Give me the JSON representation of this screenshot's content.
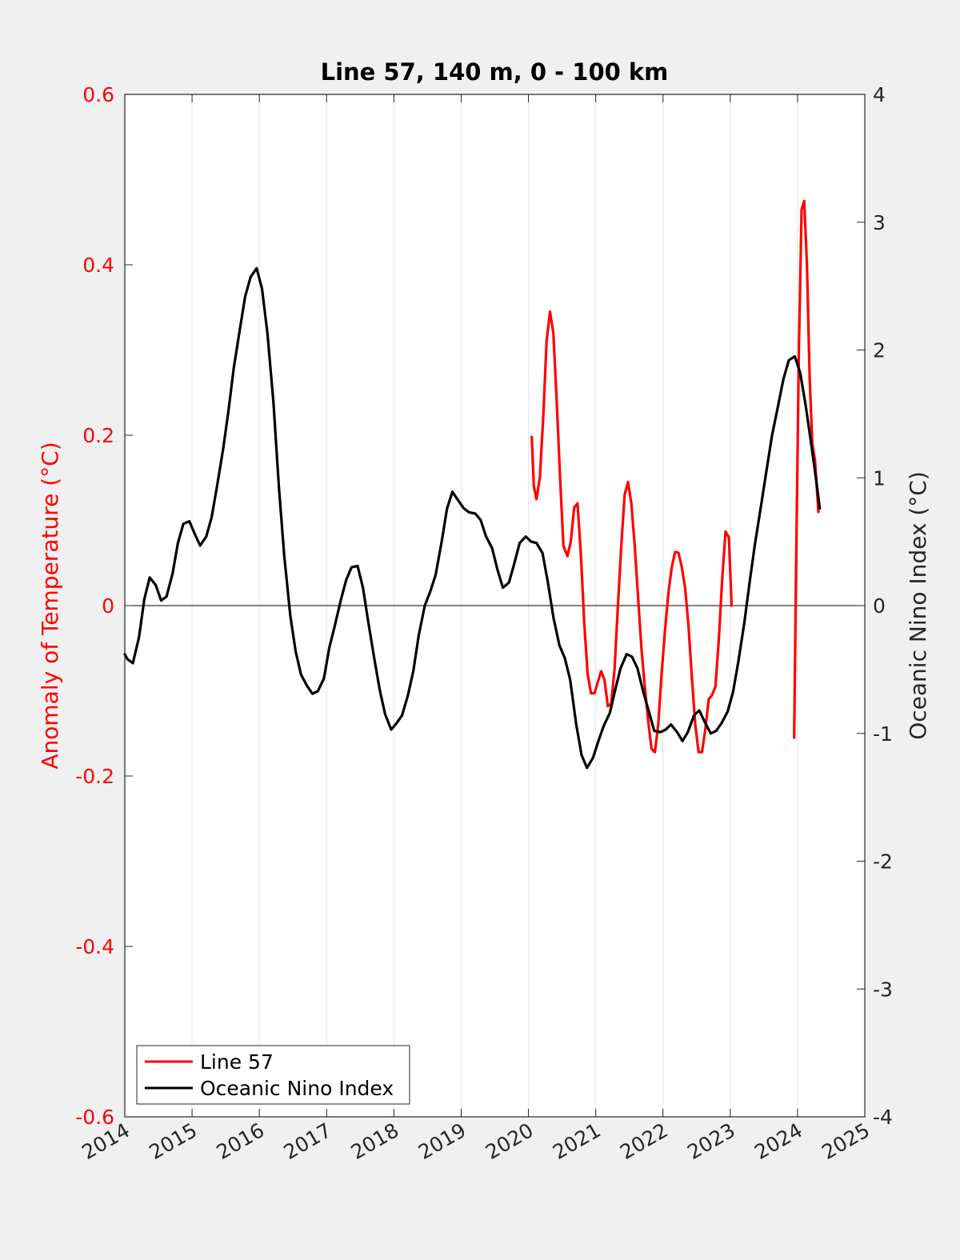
{
  "chart_data": {
    "type": "line",
    "title": "Line 57, 140 m, 0 - 100 km",
    "xlabel": "",
    "ylabel_left": "Anomaly of Temperature (°C)",
    "ylabel_right": "Oceanic Nino Index (°C)",
    "xlim": [
      2014,
      2025
    ],
    "ylim_left": [
      -0.6,
      0.6
    ],
    "ylim_right": [
      -4,
      4
    ],
    "x_ticks": [
      2014,
      2015,
      2016,
      2017,
      2018,
      2019,
      2020,
      2021,
      2022,
      2023,
      2024,
      2025
    ],
    "x_tick_labels": [
      "2014",
      "2015",
      "2016",
      "2017",
      "2018",
      "2019",
      "2020",
      "2021",
      "2022",
      "2023",
      "2024",
      "2025"
    ],
    "y_left_ticks": [
      -0.6,
      -0.4,
      -0.2,
      0,
      0.2,
      0.4,
      0.6
    ],
    "y_left_tick_labels": [
      "-0.6",
      "-0.4",
      "-0.2",
      "0",
      "0.2",
      "0.4",
      "0.6"
    ],
    "y_right_ticks": [
      -4,
      -3,
      -2,
      -1,
      0,
      1,
      2,
      3,
      4
    ],
    "y_right_tick_labels": [
      "-4",
      "-3",
      "-2",
      "-1",
      "0",
      "1",
      "2",
      "3",
      "4"
    ],
    "grid": "vertical",
    "legend_position": "bottom-left",
    "colors": {
      "line57": "#ff0000",
      "oni": "#000000",
      "left_axis": "#ff0000"
    },
    "series": [
      {
        "name": "Line 57",
        "axis": "left",
        "segments": [
          [
            [
              2020.05,
              0.198
            ],
            [
              2020.08,
              0.14
            ],
            [
              2020.12,
              0.125
            ],
            [
              2020.17,
              0.15
            ],
            [
              2020.22,
              0.22
            ],
            [
              2020.27,
              0.31
            ],
            [
              2020.32,
              0.345
            ],
            [
              2020.37,
              0.32
            ],
            [
              2020.42,
              0.24
            ],
            [
              2020.47,
              0.15
            ],
            [
              2020.52,
              0.07
            ],
            [
              2020.58,
              0.058
            ],
            [
              2020.63,
              0.075
            ],
            [
              2020.68,
              0.115
            ],
            [
              2020.73,
              0.12
            ],
            [
              2020.78,
              0.06
            ],
            [
              2020.83,
              -0.02
            ],
            [
              2020.88,
              -0.08
            ],
            [
              2020.93,
              -0.103
            ],
            [
              2020.98,
              -0.103
            ],
            [
              2021.03,
              -0.09
            ],
            [
              2021.08,
              -0.077
            ],
            [
              2021.13,
              -0.087
            ],
            [
              2021.18,
              -0.118
            ],
            [
              2021.23,
              -0.115
            ],
            [
              2021.28,
              -0.075
            ],
            [
              2021.33,
              0.0
            ],
            [
              2021.38,
              0.07
            ],
            [
              2021.43,
              0.13
            ],
            [
              2021.48,
              0.145
            ],
            [
              2021.53,
              0.12
            ],
            [
              2021.58,
              0.07
            ],
            [
              2021.63,
              0.01
            ],
            [
              2021.68,
              -0.05
            ],
            [
              2021.73,
              -0.095
            ],
            [
              2021.78,
              -0.135
            ],
            [
              2021.83,
              -0.168
            ],
            [
              2021.88,
              -0.172
            ],
            [
              2021.93,
              -0.14
            ],
            [
              2021.98,
              -0.08
            ],
            [
              2022.03,
              -0.03
            ],
            [
              2022.08,
              0.015
            ],
            [
              2022.13,
              0.045
            ],
            [
              2022.18,
              0.063
            ],
            [
              2022.23,
              0.062
            ],
            [
              2022.28,
              0.045
            ],
            [
              2022.33,
              0.02
            ],
            [
              2022.38,
              -0.025
            ],
            [
              2022.43,
              -0.085
            ],
            [
              2022.48,
              -0.14
            ],
            [
              2022.53,
              -0.172
            ],
            [
              2022.58,
              -0.172
            ],
            [
              2022.63,
              -0.145
            ],
            [
              2022.68,
              -0.11
            ],
            [
              2022.73,
              -0.105
            ],
            [
              2022.78,
              -0.095
            ],
            [
              2022.83,
              -0.04
            ],
            [
              2022.88,
              0.03
            ],
            [
              2022.93,
              0.087
            ],
            [
              2022.98,
              0.08
            ],
            [
              2023.02,
              0.0
            ]
          ],
          [
            [
              2023.95,
              -0.155
            ],
            [
              2023.98,
              0.05
            ],
            [
              2024.02,
              0.3
            ],
            [
              2024.06,
              0.465
            ],
            [
              2024.1,
              0.475
            ],
            [
              2024.14,
              0.4
            ],
            [
              2024.18,
              0.27
            ],
            [
              2024.22,
              0.19
            ],
            [
              2024.26,
              0.17
            ],
            [
              2024.31,
              0.11
            ]
          ]
        ]
      },
      {
        "name": "Oceanic Nino Index",
        "axis": "right",
        "points": [
          [
            2014.0,
            -0.38
          ],
          [
            2014.04,
            -0.42
          ],
          [
            2014.12,
            -0.45
          ],
          [
            2014.21,
            -0.25
          ],
          [
            2014.29,
            0.05
          ],
          [
            2014.37,
            0.22
          ],
          [
            2014.46,
            0.16
          ],
          [
            2014.54,
            0.04
          ],
          [
            2014.62,
            0.07
          ],
          [
            2014.71,
            0.25
          ],
          [
            2014.79,
            0.49
          ],
          [
            2014.87,
            0.64
          ],
          [
            2014.96,
            0.66
          ],
          [
            2015.04,
            0.56
          ],
          [
            2015.12,
            0.47
          ],
          [
            2015.21,
            0.54
          ],
          [
            2015.29,
            0.69
          ],
          [
            2015.37,
            0.93
          ],
          [
            2015.46,
            1.22
          ],
          [
            2015.54,
            1.52
          ],
          [
            2015.62,
            1.86
          ],
          [
            2015.71,
            2.16
          ],
          [
            2015.79,
            2.42
          ],
          [
            2015.87,
            2.57
          ],
          [
            2015.96,
            2.64
          ],
          [
            2016.04,
            2.48
          ],
          [
            2016.12,
            2.13
          ],
          [
            2016.21,
            1.59
          ],
          [
            2016.29,
            0.93
          ],
          [
            2016.37,
            0.39
          ],
          [
            2016.46,
            -0.08
          ],
          [
            2016.54,
            -0.36
          ],
          [
            2016.62,
            -0.54
          ],
          [
            2016.71,
            -0.63
          ],
          [
            2016.79,
            -0.69
          ],
          [
            2016.87,
            -0.67
          ],
          [
            2016.96,
            -0.57
          ],
          [
            2017.04,
            -0.33
          ],
          [
            2017.12,
            -0.16
          ],
          [
            2017.21,
            0.04
          ],
          [
            2017.29,
            0.2
          ],
          [
            2017.37,
            0.3
          ],
          [
            2017.46,
            0.31
          ],
          [
            2017.54,
            0.14
          ],
          [
            2017.62,
            -0.13
          ],
          [
            2017.71,
            -0.42
          ],
          [
            2017.79,
            -0.66
          ],
          [
            2017.87,
            -0.85
          ],
          [
            2017.96,
            -0.97
          ],
          [
            2018.04,
            -0.92
          ],
          [
            2018.12,
            -0.86
          ],
          [
            2018.21,
            -0.7
          ],
          [
            2018.29,
            -0.51
          ],
          [
            2018.37,
            -0.23
          ],
          [
            2018.46,
            0.0
          ],
          [
            2018.54,
            0.11
          ],
          [
            2018.62,
            0.24
          ],
          [
            2018.71,
            0.5
          ],
          [
            2018.79,
            0.76
          ],
          [
            2018.87,
            0.89
          ],
          [
            2018.96,
            0.82
          ],
          [
            2019.04,
            0.76
          ],
          [
            2019.12,
            0.73
          ],
          [
            2019.21,
            0.72
          ],
          [
            2019.29,
            0.67
          ],
          [
            2019.37,
            0.54
          ],
          [
            2019.46,
            0.45
          ],
          [
            2019.54,
            0.28
          ],
          [
            2019.62,
            0.14
          ],
          [
            2019.71,
            0.18
          ],
          [
            2019.79,
            0.33
          ],
          [
            2019.87,
            0.49
          ],
          [
            2019.96,
            0.54
          ],
          [
            2020.04,
            0.5
          ],
          [
            2020.12,
            0.49
          ],
          [
            2020.21,
            0.41
          ],
          [
            2020.29,
            0.18
          ],
          [
            2020.37,
            -0.09
          ],
          [
            2020.46,
            -0.31
          ],
          [
            2020.54,
            -0.41
          ],
          [
            2020.62,
            -0.58
          ],
          [
            2020.71,
            -0.93
          ],
          [
            2020.79,
            -1.17
          ],
          [
            2020.87,
            -1.27
          ],
          [
            2020.96,
            -1.19
          ],
          [
            2021.04,
            -1.06
          ],
          [
            2021.12,
            -0.94
          ],
          [
            2021.21,
            -0.84
          ],
          [
            2021.29,
            -0.66
          ],
          [
            2021.37,
            -0.49
          ],
          [
            2021.46,
            -0.38
          ],
          [
            2021.54,
            -0.4
          ],
          [
            2021.62,
            -0.49
          ],
          [
            2021.71,
            -0.68
          ],
          [
            2021.79,
            -0.83
          ],
          [
            2021.87,
            -0.98
          ],
          [
            2021.96,
            -0.99
          ],
          [
            2022.04,
            -0.97
          ],
          [
            2022.12,
            -0.93
          ],
          [
            2022.21,
            -0.99
          ],
          [
            2022.29,
            -1.06
          ],
          [
            2022.37,
            -0.99
          ],
          [
            2022.46,
            -0.86
          ],
          [
            2022.54,
            -0.82
          ],
          [
            2022.62,
            -0.91
          ],
          [
            2022.71,
            -1.0
          ],
          [
            2022.79,
            -0.98
          ],
          [
            2022.87,
            -0.92
          ],
          [
            2022.96,
            -0.83
          ],
          [
            2023.04,
            -0.68
          ],
          [
            2023.12,
            -0.44
          ],
          [
            2023.21,
            -0.13
          ],
          [
            2023.29,
            0.19
          ],
          [
            2023.37,
            0.49
          ],
          [
            2023.46,
            0.79
          ],
          [
            2023.54,
            1.06
          ],
          [
            2023.62,
            1.33
          ],
          [
            2023.71,
            1.56
          ],
          [
            2023.79,
            1.77
          ],
          [
            2023.87,
            1.92
          ],
          [
            2023.96,
            1.95
          ],
          [
            2024.04,
            1.82
          ],
          [
            2024.12,
            1.57
          ],
          [
            2024.21,
            1.24
          ],
          [
            2024.29,
            0.93
          ],
          [
            2024.33,
            0.76
          ]
        ]
      }
    ]
  }
}
